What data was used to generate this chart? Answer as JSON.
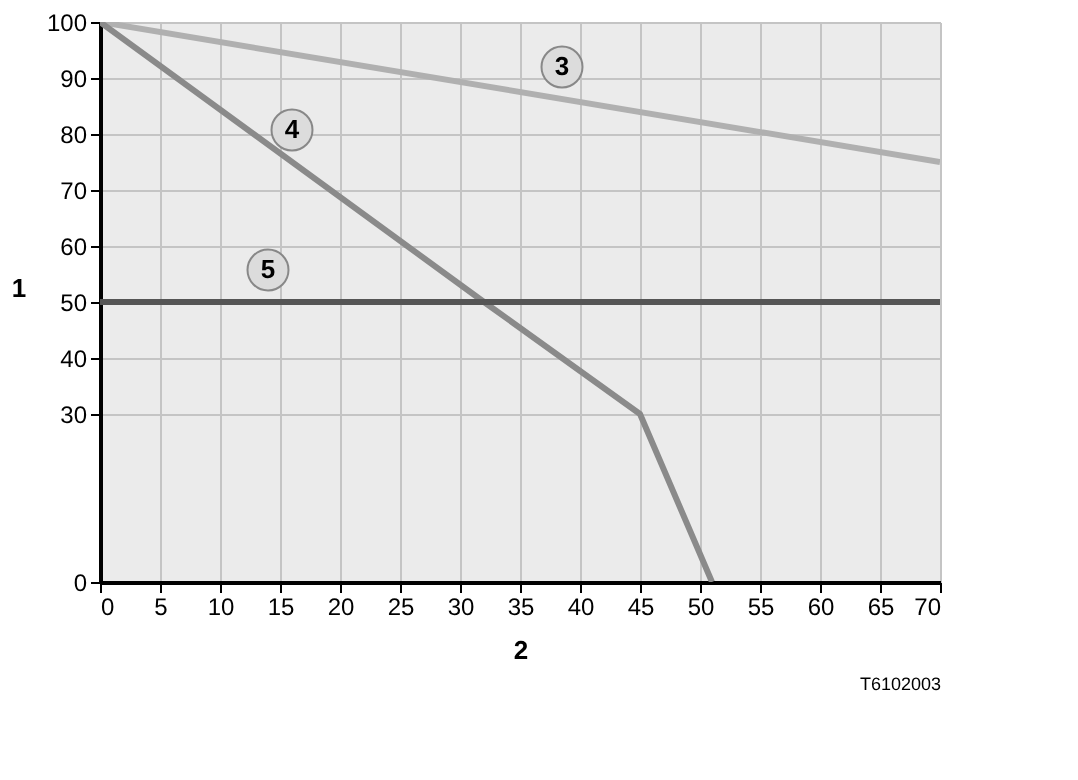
{
  "chart_data": {
    "type": "line",
    "xlabel": "2",
    "ylabel": "1",
    "series": [
      {
        "name": "3",
        "color": "#b0b0b0",
        "x": [
          0,
          70
        ],
        "values": [
          100,
          75
        ]
      },
      {
        "name": "4",
        "color": "#8a8a8a",
        "x": [
          0,
          32,
          45,
          51
        ],
        "values": [
          100,
          50,
          30,
          0
        ]
      },
      {
        "name": "5",
        "color": "#555555",
        "x": [
          0,
          70
        ],
        "values": [
          50,
          50
        ]
      }
    ],
    "xlim": [
      0,
      70
    ],
    "xticks": [
      0,
      5,
      10,
      15,
      20,
      25,
      30,
      35,
      40,
      45,
      50,
      55,
      60,
      65,
      70
    ],
    "ylim": [
      0,
      100
    ],
    "yticks": [
      0,
      30,
      40,
      50,
      60,
      70,
      80,
      90,
      100
    ],
    "grid": true,
    "legend": false,
    "marker": "none",
    "line_style": "solid",
    "annotations": [
      "T6102003"
    ]
  }
}
